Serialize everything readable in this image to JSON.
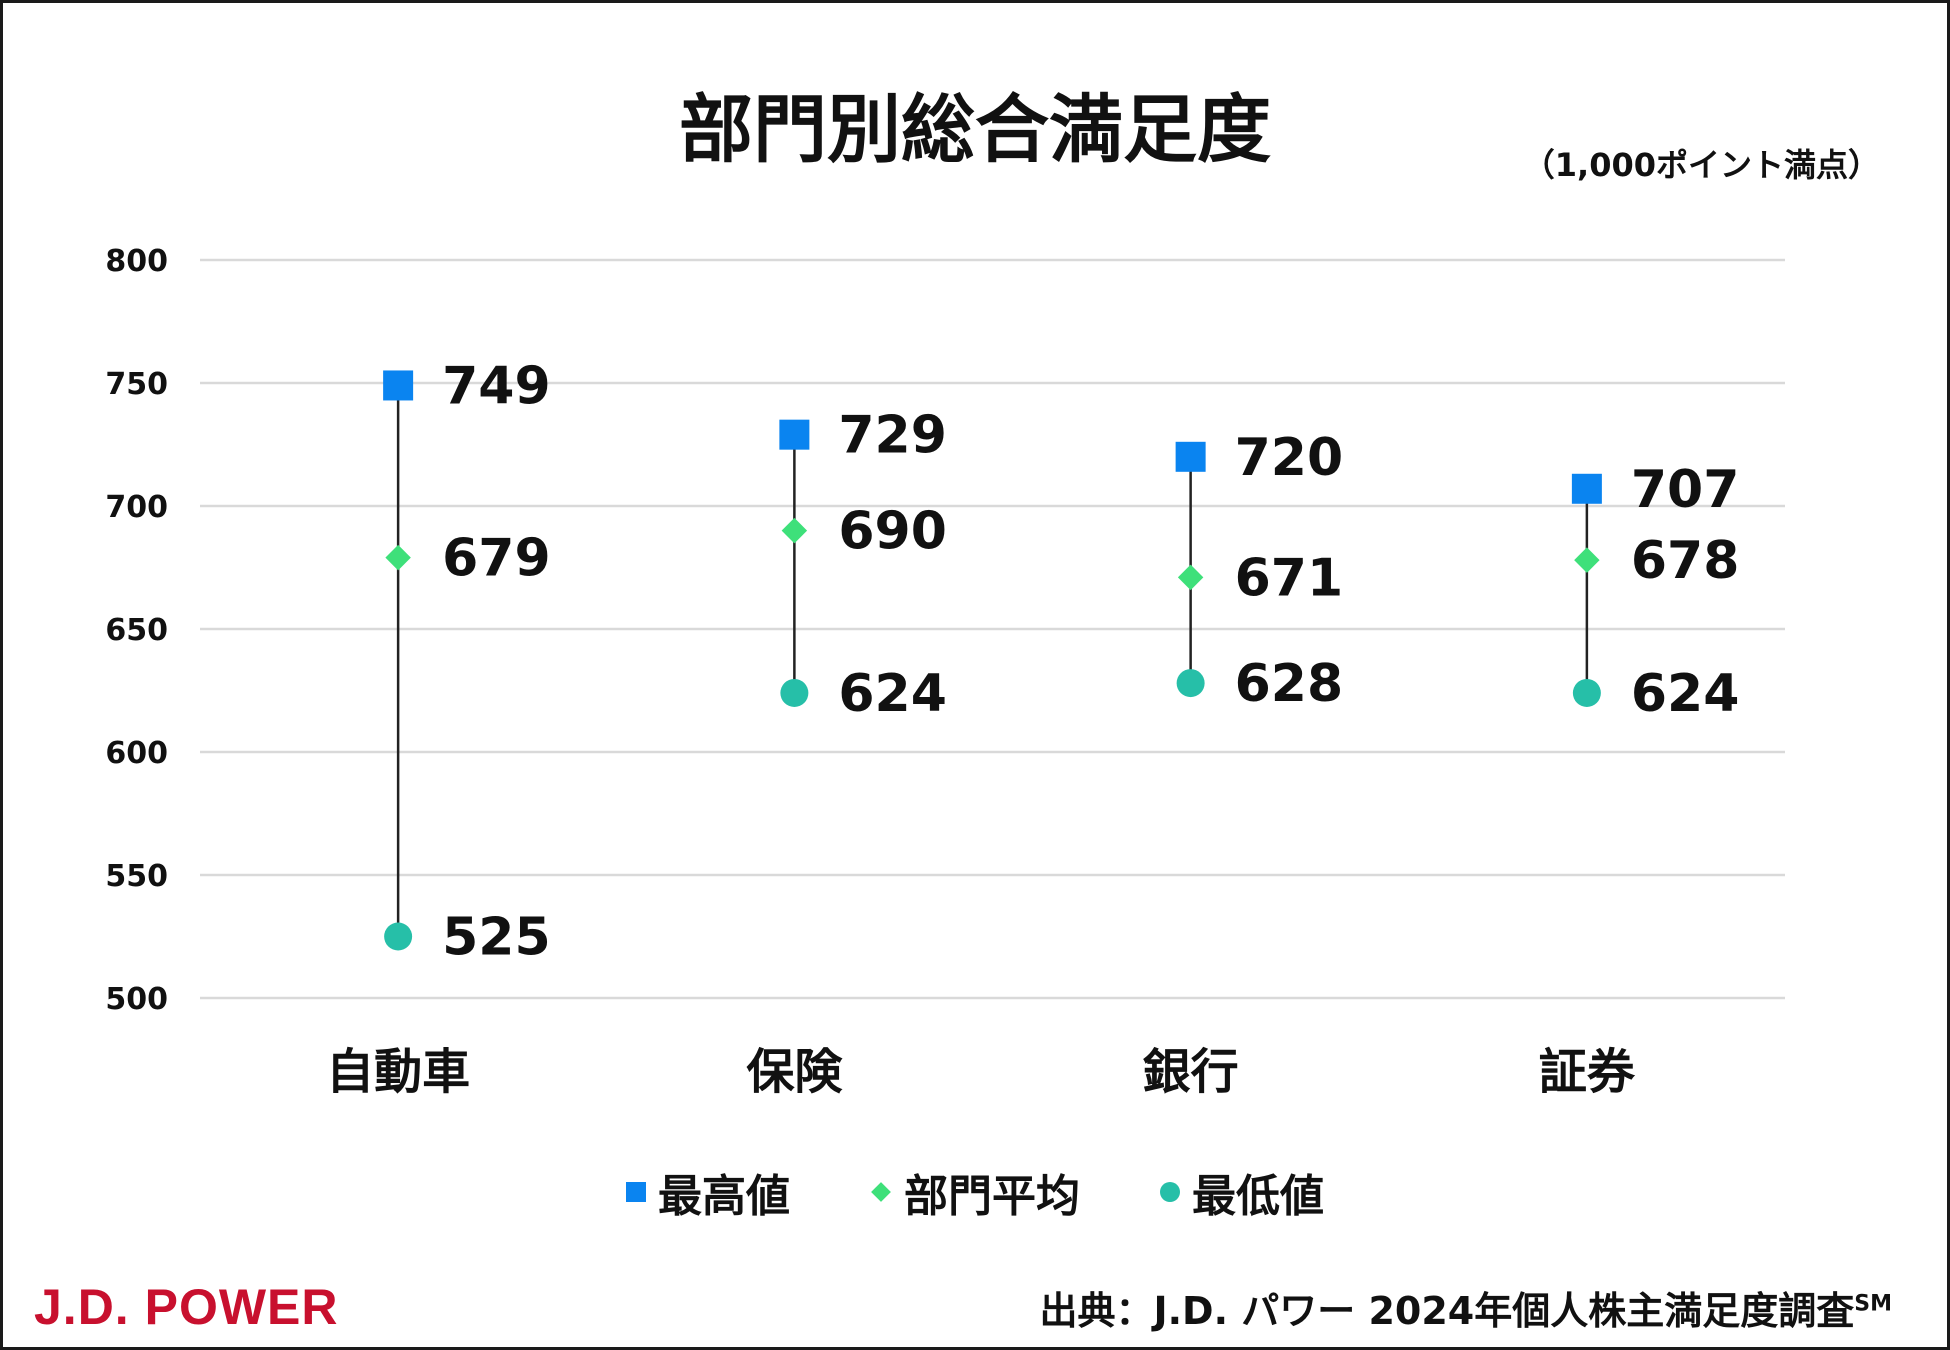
{
  "title": "部門別総合満足度",
  "unit_note": "（1,000ポイント満点）",
  "legend": [
    {
      "label": "最高値",
      "marker": "square",
      "color": "#0a84f0"
    },
    {
      "label": "部門平均",
      "marker": "diamond",
      "color": "#3ee07a"
    },
    {
      "label": "最低値",
      "marker": "circle",
      "color": "#26bfa8"
    }
  ],
  "logo_text": "J.D. POWER",
  "source": {
    "text": "出典：J.D. パワー 2024年個人株主満足度調査",
    "superscript": "SM"
  },
  "colors": {
    "range_line": "#222222",
    "grid": "#d9d9d9",
    "logo": "#c8102e"
  },
  "chart_data": {
    "type": "scatter",
    "categories": [
      "自動車",
      "保険",
      "銀行",
      "証券"
    ],
    "series": [
      {
        "name": "最高値",
        "marker": "square",
        "color": "#0a84f0",
        "values": [
          749,
          729,
          720,
          707
        ]
      },
      {
        "name": "部門平均",
        "marker": "diamond",
        "color": "#3ee07a",
        "values": [
          679,
          690,
          671,
          678
        ]
      },
      {
        "name": "最低値",
        "marker": "circle",
        "color": "#26bfa8",
        "values": [
          525,
          624,
          628,
          624
        ]
      }
    ],
    "ylim": [
      500,
      800
    ],
    "yticks": [
      800,
      750,
      700,
      650,
      600,
      550,
      500
    ],
    "grid": true,
    "legend_position": "bottom"
  }
}
